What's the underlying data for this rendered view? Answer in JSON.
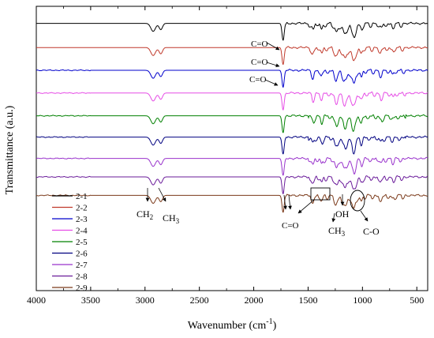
{
  "chart_data": {
    "type": "line",
    "xlabel": "Wavenumber (cm",
    "xlabel_sup": "-1",
    "xlabel_close": ")",
    "ylabel": "Transmittance (a.u.)",
    "xlim": [
      4000,
      400
    ],
    "x_reversed": true,
    "x_ticks": [
      "4000",
      "3500",
      "3000",
      "2500",
      "2000",
      "1500",
      "1000",
      "500"
    ],
    "grid": false,
    "legend_placement": "bottom-left",
    "series": [
      {
        "name": "2-1",
        "color": "#000000",
        "offset": 0.06
      },
      {
        "name": "2-2",
        "color": "#c0392b",
        "offset": 0.145
      },
      {
        "name": "2-3",
        "color": "#0000cc",
        "offset": 0.225
      },
      {
        "name": "2-4",
        "color": "#e64de6",
        "offset": 0.305
      },
      {
        "name": "2-5",
        "color": "#008000",
        "offset": 0.385
      },
      {
        "name": "2-6",
        "color": "#000080",
        "offset": 0.46
      },
      {
        "name": "2-7",
        "color": "#9933cc",
        "offset": 0.535
      },
      {
        "name": "2-8",
        "color": "#6a1b9a",
        "offset": 0.6
      },
      {
        "name": "2-9",
        "color": "#7b3a1a",
        "offset": 0.665
      }
    ],
    "peaks": [
      {
        "x": 2925,
        "depth": 0.028,
        "width": 30
      },
      {
        "x": 2855,
        "depth": 0.022,
        "width": 22
      },
      {
        "x": 1730,
        "depth": 0.06,
        "width": 14
      },
      {
        "x": 1455,
        "depth": 0.02,
        "width": 16
      },
      {
        "x": 1375,
        "depth": 0.018,
        "width": 14
      },
      {
        "x": 1240,
        "depth": 0.03,
        "width": 22
      },
      {
        "x": 1160,
        "depth": 0.035,
        "width": 28
      },
      {
        "x": 1080,
        "depth": 0.045,
        "width": 25
      },
      {
        "x": 1010,
        "depth": 0.02,
        "width": 15
      },
      {
        "x": 830,
        "depth": 0.014,
        "width": 18
      },
      {
        "x": 720,
        "depth": 0.01,
        "width": 15
      }
    ],
    "annotations": {
      "co_top1": "C=O",
      "co_top2": "C=O",
      "co_top3": "C=O",
      "ch2": "CH",
      "ch2_sub": "2",
      "ch3": "CH",
      "ch3_sub": "3",
      "co_bottom": "C=O",
      "ch3_bottom": "CH",
      "ch3_bottom_sub": "3",
      "oh": "OH",
      "c_o": "C-O"
    }
  }
}
